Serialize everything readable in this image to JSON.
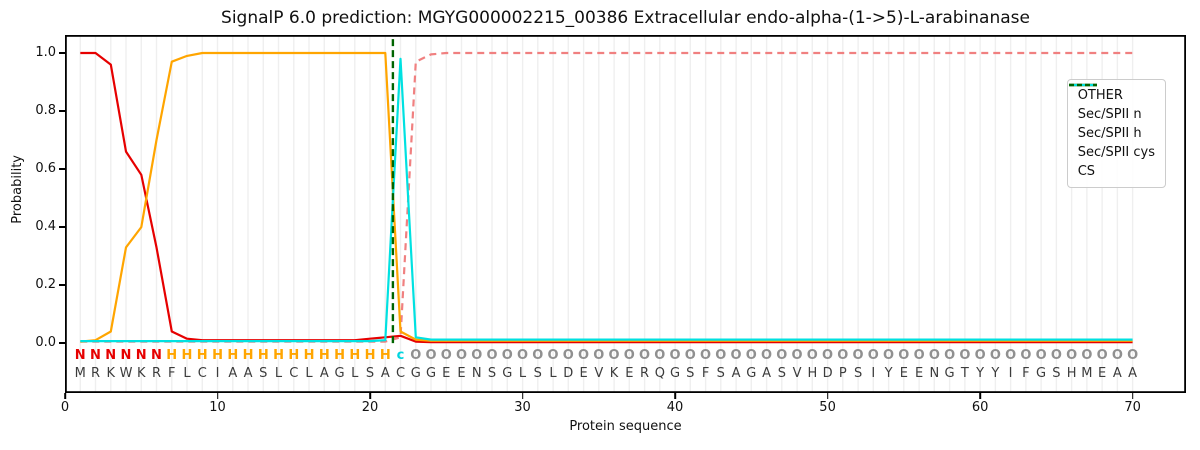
{
  "title": "SignalP 6.0 prediction: MGYG000002215_00386 Extracellular endo-alpha-(1->5)-L-arabinanase",
  "axes": {
    "x_label": "Protein sequence",
    "y_label": "Probability",
    "x_ticks": [
      0,
      10,
      20,
      30,
      40,
      50,
      60,
      70
    ],
    "y_ticks": [
      "0.0",
      "0.2",
      "0.4",
      "0.6",
      "0.8",
      "1.0"
    ]
  },
  "legend": [
    {
      "label": "OTHER",
      "color": "#f08080",
      "dash": true
    },
    {
      "label": "Sec/SPII n",
      "color": "#e60000",
      "dash": false
    },
    {
      "label": "Sec/SPII h",
      "color": "#ffa500",
      "dash": false
    },
    {
      "label": "Sec/SPII cys",
      "color": "#00e1e1",
      "dash": false
    },
    {
      "label": "CS",
      "color": "#006400",
      "dash": true
    }
  ],
  "sequence": "MRKWKRFLCIAASLCLAGLSACGGEENSGLSLDEVKERQGSFSAGASVHDPSIYEENGTYYIFGSHMEAA",
  "region_labels": "NNNNNNHHHHHHHHHHHHHHHcOOOOOOOOOOOOOOOOOOOOOOOOOOOOOOOOOOOOOOOOOOOOOOOO",
  "label_colors": {
    "N": "#e60000",
    "H": "#ffa500",
    "c": "#00d5e0",
    "O": "#909090"
  },
  "sequence_color": "#3c3c3c",
  "gridline_color": "#efefef",
  "frame_color": "#000000",
  "chart_data": {
    "type": "line",
    "title": "SignalP 6.0 prediction: MGYG000002215_00386 Extracellular endo-alpha-(1->5)-L-arabinanase",
    "xlabel": "Protein sequence",
    "ylabel": "Probability",
    "xlim": [
      0,
      73.5
    ],
    "ylim": [
      -0.172,
      1.062
    ],
    "grid": "vertical-per-residue",
    "legend_position": "upper right",
    "x_start": 1,
    "series": [
      {
        "name": "OTHER",
        "color": "#f08080",
        "dash": true,
        "values": [
          0.005,
          0.005,
          0.005,
          0.005,
          0.005,
          0.005,
          0.005,
          0.005,
          0.005,
          0.005,
          0.005,
          0.005,
          0.005,
          0.005,
          0.005,
          0.005,
          0.005,
          0.005,
          0.005,
          0.005,
          0.005,
          0.02,
          0.97,
          0.995,
          1.0,
          1.0,
          1.0,
          1.0,
          1.0,
          1.0,
          1.0,
          1.0,
          1.0,
          1.0,
          1.0,
          1.0,
          1.0,
          1.0,
          1.0,
          1.0,
          1.0,
          1.0,
          1.0,
          1.0,
          1.0,
          1.0,
          1.0,
          1.0,
          1.0,
          1.0,
          1.0,
          1.0,
          1.0,
          1.0,
          1.0,
          1.0,
          1.0,
          1.0,
          1.0,
          1.0,
          1.0,
          1.0,
          1.0,
          1.0,
          1.0,
          1.0,
          1.0,
          1.0,
          1.0,
          1.0
        ]
      },
      {
        "name": "Sec/SPII n",
        "color": "#e60000",
        "dash": false,
        "values": [
          1.0,
          1.0,
          0.96,
          0.66,
          0.58,
          0.33,
          0.04,
          0.015,
          0.01,
          0.01,
          0.01,
          0.01,
          0.01,
          0.01,
          0.01,
          0.01,
          0.01,
          0.01,
          0.01,
          0.015,
          0.02,
          0.025,
          0.005,
          0.003,
          0.003,
          0.003,
          0.003,
          0.003,
          0.003,
          0.003,
          0.003,
          0.003,
          0.003,
          0.003,
          0.003,
          0.003,
          0.003,
          0.003,
          0.003,
          0.003,
          0.003,
          0.003,
          0.003,
          0.003,
          0.003,
          0.003,
          0.003,
          0.003,
          0.003,
          0.003,
          0.003,
          0.003,
          0.003,
          0.003,
          0.003,
          0.003,
          0.003,
          0.003,
          0.003,
          0.003,
          0.003,
          0.003,
          0.003,
          0.003,
          0.003,
          0.003,
          0.003,
          0.003,
          0.003,
          0.003
        ]
      },
      {
        "name": "Sec/SPII h",
        "color": "#ffa500",
        "dash": false,
        "values": [
          0.005,
          0.01,
          0.04,
          0.33,
          0.4,
          0.7,
          0.97,
          0.99,
          1.0,
          1.0,
          1.0,
          1.0,
          1.0,
          1.0,
          1.0,
          1.0,
          1.0,
          1.0,
          1.0,
          1.0,
          1.0,
          0.04,
          0.012,
          0.008,
          0.008,
          0.008,
          0.008,
          0.008,
          0.008,
          0.008,
          0.008,
          0.008,
          0.008,
          0.008,
          0.008,
          0.008,
          0.008,
          0.008,
          0.008,
          0.008,
          0.008,
          0.008,
          0.008,
          0.008,
          0.008,
          0.008,
          0.008,
          0.008,
          0.008,
          0.008,
          0.008,
          0.008,
          0.008,
          0.008,
          0.008,
          0.008,
          0.008,
          0.008,
          0.008,
          0.008,
          0.008,
          0.008,
          0.008,
          0.008,
          0.008,
          0.008,
          0.008,
          0.008,
          0.008,
          0.008
        ]
      },
      {
        "name": "Sec/SPII cys",
        "color": "#00e1e1",
        "dash": false,
        "values": [
          0.007,
          0.007,
          0.007,
          0.007,
          0.007,
          0.007,
          0.007,
          0.007,
          0.007,
          0.007,
          0.007,
          0.007,
          0.007,
          0.007,
          0.007,
          0.007,
          0.007,
          0.007,
          0.007,
          0.007,
          0.01,
          0.98,
          0.02,
          0.012,
          0.012,
          0.012,
          0.012,
          0.012,
          0.012,
          0.012,
          0.012,
          0.012,
          0.012,
          0.012,
          0.012,
          0.012,
          0.012,
          0.012,
          0.012,
          0.012,
          0.012,
          0.012,
          0.012,
          0.012,
          0.012,
          0.012,
          0.012,
          0.012,
          0.012,
          0.012,
          0.012,
          0.012,
          0.012,
          0.012,
          0.012,
          0.012,
          0.012,
          0.012,
          0.012,
          0.012,
          0.012,
          0.012,
          0.012,
          0.012,
          0.012,
          0.012,
          0.012,
          0.012,
          0.012,
          0.012
        ]
      }
    ],
    "cs_marker": {
      "name": "CS",
      "position": 21.5,
      "color": "#006400",
      "dash": true
    }
  }
}
